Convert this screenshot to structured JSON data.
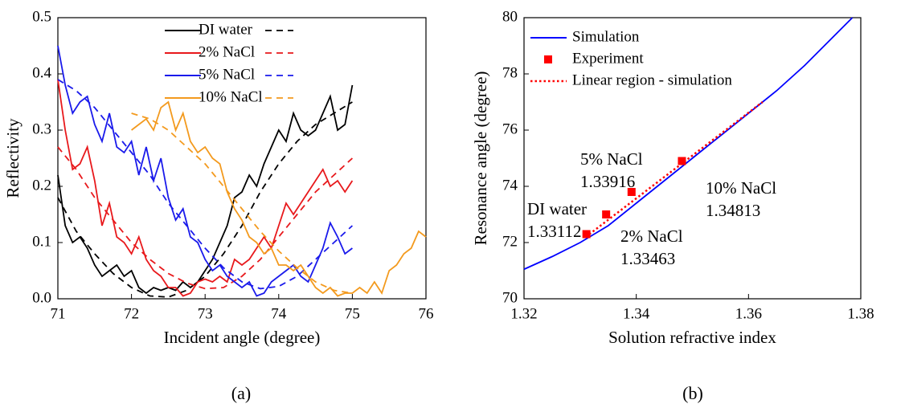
{
  "chart_data": [
    {
      "type": "line",
      "panel_label": "(a)",
      "x_label": "Incident angle (degree)",
      "y_label": "Reflectivity",
      "xlim": [
        71,
        76
      ],
      "xticks": [
        71,
        72,
        73,
        74,
        75,
        76
      ],
      "ylim": [
        0,
        0.5
      ],
      "yticks": [
        {
          "value": 0,
          "label": "0.0"
        },
        0.1,
        0.2,
        0.3,
        0.4,
        0.5
      ],
      "legend": "upper center",
      "series": [
        {
          "name": "DI water",
          "color": "#000000",
          "x": [
            71,
            71.1,
            71.2,
            71.3,
            71.4,
            71.5,
            71.6,
            71.7,
            71.8,
            71.9,
            72,
            72.1,
            72.2,
            72.3,
            72.4,
            72.5,
            72.6,
            72.7,
            72.8,
            72.9,
            73,
            73.1,
            73.2,
            73.3,
            73.4,
            73.5,
            73.6,
            73.7,
            73.8,
            73.9,
            74,
            74.1,
            74.2,
            74.3,
            74.4,
            74.5,
            74.6,
            74.7,
            74.8,
            74.9,
            75
          ],
          "values": [
            0.22,
            0.13,
            0.1,
            0.11,
            0.09,
            0.06,
            0.04,
            0.05,
            0.06,
            0.04,
            0.05,
            0.02,
            0.01,
            0.02,
            0.015,
            0.02,
            0.015,
            0.03,
            0.02,
            0.03,
            0.05,
            0.07,
            0.1,
            0.13,
            0.18,
            0.19,
            0.22,
            0.2,
            0.24,
            0.27,
            0.3,
            0.28,
            0.33,
            0.3,
            0.29,
            0.3,
            0.33,
            0.36,
            0.3,
            0.31,
            0.38
          ],
          "fit": {
            "x": [
              71,
              71.25,
              71.5,
              71.75,
              72,
              72.25,
              72.5,
              72.75,
              73,
              73.25,
              73.5,
              73.75,
              74,
              74.25,
              74.5,
              74.75,
              75
            ],
            "values": [
              0.18,
              0.12,
              0.08,
              0.045,
              0.02,
              0.005,
              0.003,
              0.015,
              0.04,
              0.08,
              0.13,
              0.19,
              0.24,
              0.28,
              0.31,
              0.33,
              0.35
            ]
          }
        },
        {
          "name": "2% NaCl",
          "color": "#e8191c",
          "x": [
            71,
            71.1,
            71.2,
            71.3,
            71.4,
            71.5,
            71.6,
            71.7,
            71.8,
            71.9,
            72,
            72.1,
            72.2,
            72.3,
            72.4,
            72.5,
            72.6,
            72.7,
            72.8,
            72.9,
            73,
            73.1,
            73.2,
            73.3,
            73.4,
            73.5,
            73.6,
            73.7,
            73.8,
            73.9,
            74,
            74.1,
            74.2,
            74.3,
            74.4,
            74.5,
            74.6,
            74.7,
            74.8,
            74.9,
            75
          ],
          "values": [
            0.39,
            0.3,
            0.23,
            0.24,
            0.27,
            0.21,
            0.13,
            0.17,
            0.11,
            0.1,
            0.08,
            0.11,
            0.07,
            0.05,
            0.04,
            0.02,
            0.02,
            0.005,
            0.01,
            0.03,
            0.035,
            0.03,
            0.04,
            0.03,
            0.07,
            0.06,
            0.07,
            0.09,
            0.11,
            0.09,
            0.13,
            0.17,
            0.15,
            0.17,
            0.19,
            0.21,
            0.23,
            0.2,
            0.21,
            0.19,
            0.21
          ],
          "fit": {
            "x": [
              71,
              71.25,
              71.5,
              71.75,
              72,
              72.25,
              72.5,
              72.75,
              73,
              73.25,
              73.5,
              73.75,
              74,
              74.25,
              74.5,
              74.75,
              75
            ],
            "values": [
              0.27,
              0.23,
              0.18,
              0.14,
              0.1,
              0.07,
              0.045,
              0.028,
              0.018,
              0.02,
              0.04,
              0.07,
              0.11,
              0.15,
              0.19,
              0.22,
              0.25
            ]
          }
        },
        {
          "name": "5% NaCl",
          "color": "#1a1aeb",
          "x": [
            71,
            71.1,
            71.2,
            71.3,
            71.4,
            71.5,
            71.6,
            71.7,
            71.8,
            71.9,
            72,
            72.1,
            72.2,
            72.3,
            72.4,
            72.5,
            72.6,
            72.7,
            72.8,
            72.9,
            73,
            73.1,
            73.2,
            73.3,
            73.4,
            73.5,
            73.6,
            73.7,
            73.8,
            73.9,
            74,
            74.1,
            74.2,
            74.3,
            74.4,
            74.5,
            74.6,
            74.7,
            74.8,
            74.9,
            75
          ],
          "values": [
            0.45,
            0.38,
            0.33,
            0.35,
            0.36,
            0.31,
            0.28,
            0.33,
            0.27,
            0.26,
            0.28,
            0.22,
            0.27,
            0.21,
            0.25,
            0.18,
            0.14,
            0.16,
            0.11,
            0.1,
            0.07,
            0.05,
            0.06,
            0.04,
            0.03,
            0.02,
            0.03,
            0.005,
            0.01,
            0.03,
            0.04,
            0.05,
            0.06,
            0.04,
            0.03,
            0.06,
            0.09,
            0.135,
            0.11,
            0.08,
            0.09
          ],
          "fit": {
            "x": [
              71,
              71.25,
              71.5,
              71.75,
              72,
              72.25,
              72.5,
              72.75,
              73,
              73.25,
              73.5,
              73.75,
              74,
              74.25,
              74.5,
              74.75,
              75
            ],
            "values": [
              0.39,
              0.37,
              0.34,
              0.3,
              0.26,
              0.22,
              0.17,
              0.13,
              0.09,
              0.055,
              0.03,
              0.018,
              0.022,
              0.04,
              0.07,
              0.1,
              0.13
            ]
          }
        },
        {
          "name": "10% NaCl",
          "color": "#f39a1e",
          "x": [
            72,
            72.1,
            72.2,
            72.3,
            72.4,
            72.5,
            72.6,
            72.7,
            72.8,
            72.9,
            73,
            73.1,
            73.2,
            73.3,
            73.4,
            73.5,
            73.6,
            73.7,
            73.8,
            73.9,
            74,
            74.1,
            74.2,
            74.3,
            74.4,
            74.5,
            74.6,
            74.7,
            74.8,
            74.9,
            75,
            75.1,
            75.2,
            75.3,
            75.4,
            75.5,
            75.6,
            75.7,
            75.8,
            75.9,
            76
          ],
          "values": [
            0.3,
            0.31,
            0.32,
            0.3,
            0.34,
            0.35,
            0.3,
            0.33,
            0.28,
            0.26,
            0.27,
            0.25,
            0.24,
            0.19,
            0.16,
            0.14,
            0.11,
            0.1,
            0.08,
            0.09,
            0.06,
            0.06,
            0.05,
            0.06,
            0.04,
            0.02,
            0.01,
            0.02,
            0.005,
            0.01,
            0.01,
            0.02,
            0.01,
            0.03,
            0.01,
            0.05,
            0.06,
            0.08,
            0.09,
            0.12,
            0.11
          ],
          "fit": {
            "x": [
              72,
              72.25,
              72.5,
              72.75,
              73,
              73.25,
              73.5,
              73.75,
              74,
              74.25,
              74.5,
              74.75,
              75
            ],
            "values": [
              0.33,
              0.32,
              0.3,
              0.27,
              0.24,
              0.2,
              0.16,
              0.12,
              0.085,
              0.055,
              0.03,
              0.015,
              0.01
            ]
          }
        }
      ]
    },
    {
      "type": "line",
      "panel_label": "(b)",
      "x_label": "Solution refractive index",
      "y_label": "Resonance angle (degree)",
      "xlim": [
        1.32,
        1.38
      ],
      "xticks": [
        1.32,
        1.34,
        1.36,
        1.38
      ],
      "ylim": [
        70,
        80
      ],
      "yticks": [
        70,
        72,
        74,
        76,
        78,
        80
      ],
      "legend": "upper left",
      "series": [
        {
          "name": "Simulation",
          "color": "#0000ff",
          "style": "solid",
          "x": [
            1.32,
            1.325,
            1.33,
            1.335,
            1.34,
            1.345,
            1.35,
            1.355,
            1.36,
            1.3625,
            1.365,
            1.37,
            1.375,
            1.3785
          ],
          "values": [
            71.05,
            71.5,
            72,
            72.6,
            73.4,
            74.2,
            75,
            75.8,
            76.6,
            77,
            77.4,
            78.3,
            79.3,
            80
          ]
        },
        {
          "name": "Experiment",
          "color": "#ff0000",
          "style": "marker",
          "x": [
            1.33112,
            1.33463,
            1.33916,
            1.34813
          ],
          "values": [
            72.3,
            73,
            73.8,
            74.9
          ]
        },
        {
          "name": "Linear region - simulation",
          "color": "#ff0000",
          "style": "dotted",
          "x": [
            1.331,
            1.3625
          ],
          "values": [
            72.2,
            77
          ]
        }
      ],
      "annotations": [
        [
          "DI water",
          "1.33112"
        ],
        [
          "2% NaCl",
          "1.33463"
        ],
        [
          "5% NaCl",
          "1.33916"
        ],
        [
          "10% NaCl",
          "1.34813"
        ]
      ]
    }
  ]
}
